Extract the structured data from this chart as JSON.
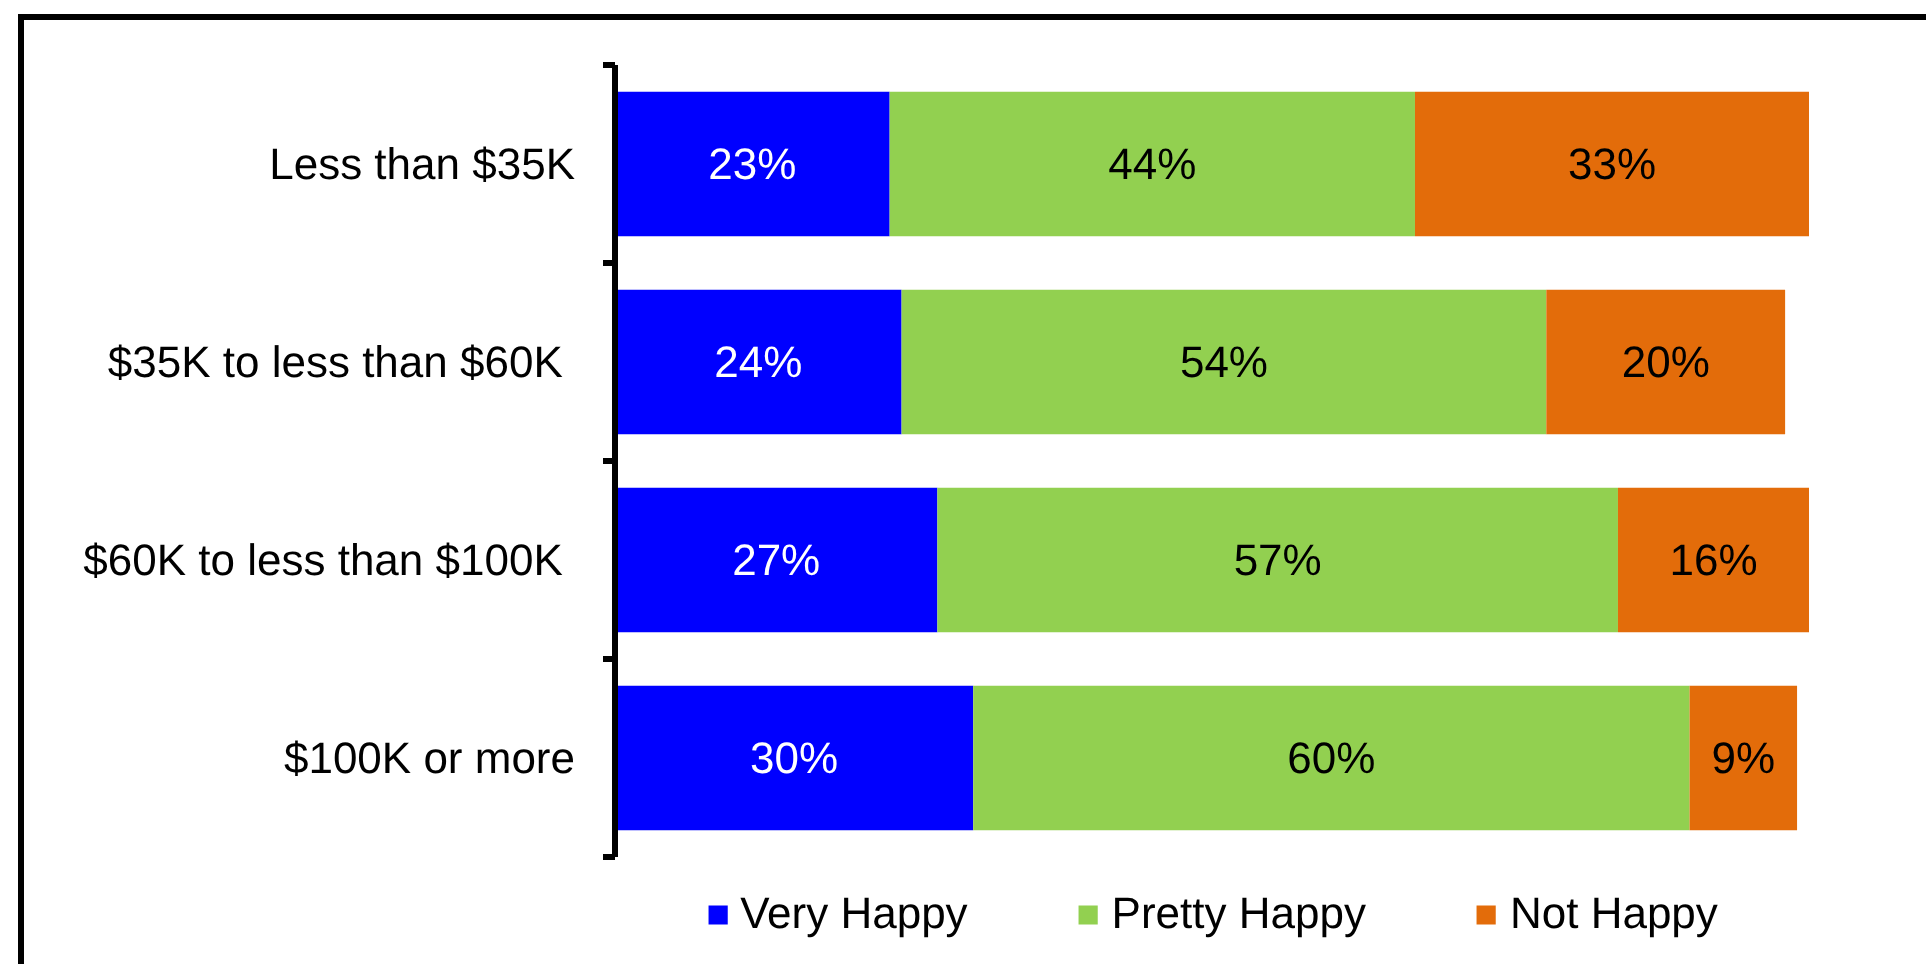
{
  "chart_data": {
    "type": "bar",
    "orientation": "horizontal",
    "stacked": true,
    "categories": [
      "Less than $35K",
      "$35K to less than  $60K",
      "$60K to less than  $100K",
      "$100K or more"
    ],
    "series": [
      {
        "name": "Very Happy",
        "color": "#0000ff",
        "values": [
          23,
          24,
          27,
          30
        ],
        "value_labels": [
          "23%",
          "24%",
          "27%",
          "30%"
        ]
      },
      {
        "name": "Pretty Happy",
        "color": "#92d050",
        "values": [
          44,
          54,
          57,
          60
        ],
        "value_labels": [
          "44%",
          "54%",
          "57%",
          "60%"
        ]
      },
      {
        "name": "Not Happy",
        "color": "#e36c0a",
        "values": [
          33,
          20,
          16,
          9
        ],
        "value_labels": [
          "33%",
          "20%",
          "16%",
          "9%"
        ]
      }
    ],
    "tick_labels": "y",
    "legend": "bottom"
  }
}
